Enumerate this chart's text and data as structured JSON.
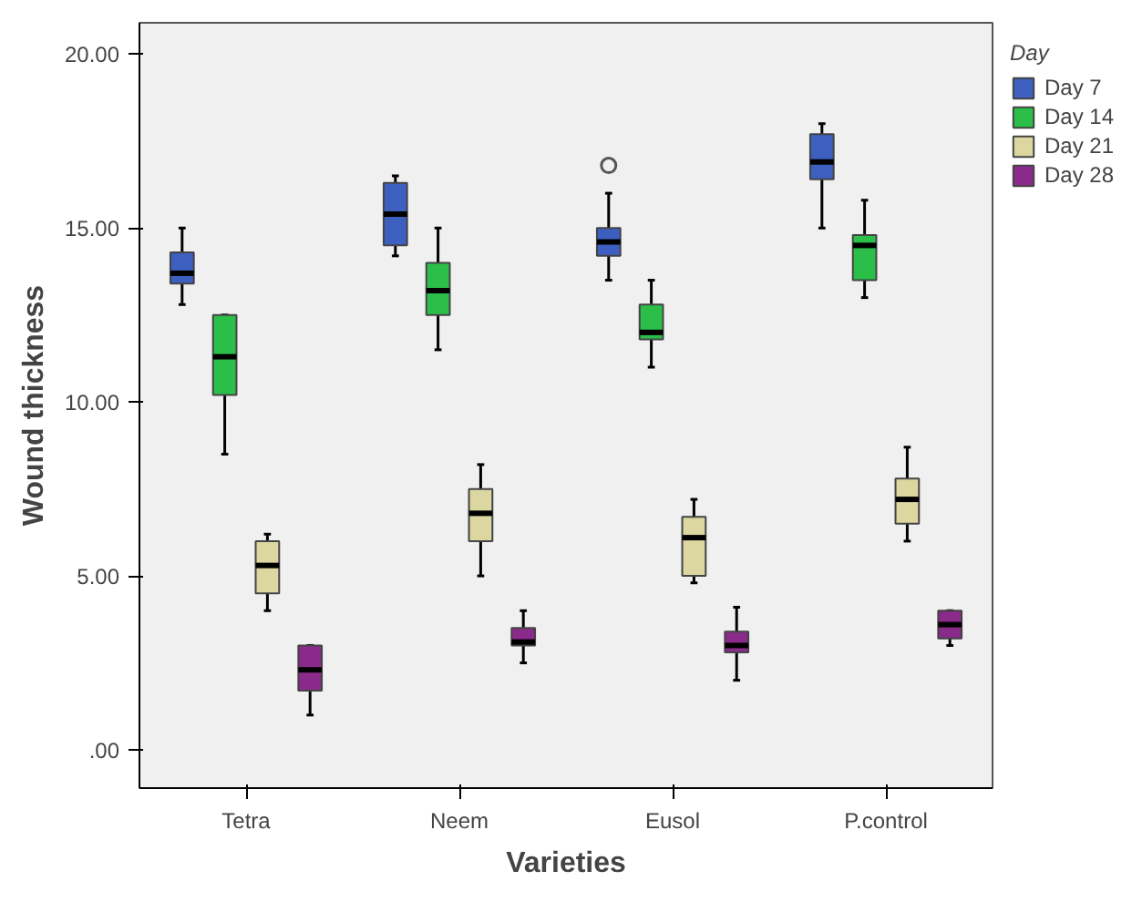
{
  "chart_data": {
    "type": "box",
    "xlabel": "Varieties",
    "ylabel": "Wound thickness",
    "legend_title": "Day",
    "legend": "right",
    "categories": [
      "Tetra",
      "Neem",
      "Eusol",
      "P.control"
    ],
    "ylim": [
      -1.1,
      20.9
    ],
    "yticks": [
      {
        "value": 0,
        "label": ".00"
      },
      {
        "value": 5,
        "label": "5.00"
      },
      {
        "value": 10,
        "label": "10.00"
      },
      {
        "value": 15,
        "label": "15.00"
      },
      {
        "value": 20,
        "label": "20.00"
      }
    ],
    "series": [
      {
        "name": "Day 7",
        "color": "#3c5fc0",
        "boxes": [
          {
            "low": 12.8,
            "q1": 13.4,
            "median": 13.7,
            "q3": 14.3,
            "high": 15.0
          },
          {
            "low": 14.2,
            "q1": 14.5,
            "median": 15.4,
            "q3": 16.3,
            "high": 16.5
          },
          {
            "low": 13.5,
            "q1": 14.2,
            "median": 14.6,
            "q3": 15.0,
            "high": 16.0,
            "outliers": [
              16.8
            ]
          },
          {
            "low": 15.0,
            "q1": 16.4,
            "median": 16.9,
            "q3": 17.7,
            "high": 18.0
          }
        ]
      },
      {
        "name": "Day 14",
        "color": "#2bbf4a",
        "boxes": [
          {
            "low": 8.5,
            "q1": 10.2,
            "median": 11.3,
            "q3": 12.5,
            "high": 12.5
          },
          {
            "low": 11.5,
            "q1": 12.5,
            "median": 13.2,
            "q3": 14.0,
            "high": 15.0
          },
          {
            "low": 11.0,
            "q1": 11.8,
            "median": 12.0,
            "q3": 12.8,
            "high": 13.5
          },
          {
            "low": 13.0,
            "q1": 13.5,
            "median": 14.5,
            "q3": 14.8,
            "high": 15.8
          }
        ]
      },
      {
        "name": "Day 21",
        "color": "#dcd6a0",
        "boxes": [
          {
            "low": 4.0,
            "q1": 4.5,
            "median": 5.3,
            "q3": 6.0,
            "high": 6.2
          },
          {
            "low": 5.0,
            "q1": 6.0,
            "median": 6.8,
            "q3": 7.5,
            "high": 8.2
          },
          {
            "low": 4.8,
            "q1": 5.0,
            "median": 6.1,
            "q3": 6.7,
            "high": 7.2
          },
          {
            "low": 6.0,
            "q1": 6.5,
            "median": 7.2,
            "q3": 7.8,
            "high": 8.7
          }
        ]
      },
      {
        "name": "Day 28",
        "color": "#8a2a8a",
        "boxes": [
          {
            "low": 1.0,
            "q1": 1.7,
            "median": 2.3,
            "q3": 3.0,
            "high": 3.0
          },
          {
            "low": 2.5,
            "q1": 3.0,
            "median": 3.1,
            "q3": 3.5,
            "high": 4.0
          },
          {
            "low": 2.0,
            "q1": 2.8,
            "median": 3.0,
            "q3": 3.4,
            "high": 4.1
          },
          {
            "low": 3.0,
            "q1": 3.2,
            "median": 3.6,
            "q3": 4.0,
            "high": 4.0
          }
        ]
      }
    ]
  }
}
